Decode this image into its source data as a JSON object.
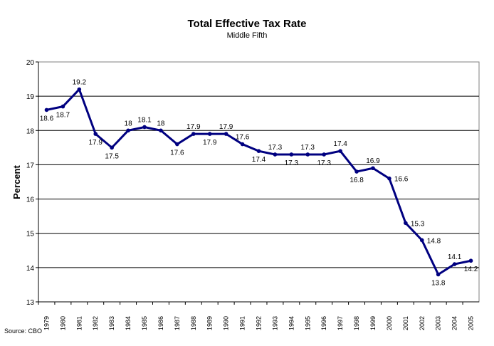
{
  "chart_data": {
    "type": "line",
    "title": "Total Effective Tax Rate",
    "subtitle": "Middle Fifth",
    "ylabel": "Percent",
    "xlabel": "",
    "source": "Source: CBO",
    "ylim": [
      13,
      20
    ],
    "yticks": [
      13,
      14,
      15,
      16,
      17,
      18,
      19,
      20
    ],
    "grid": true,
    "line_color": "#000080",
    "categories": [
      "1979",
      "1980",
      "1981",
      "1982",
      "1983",
      "1984",
      "1985",
      "1986",
      "1987",
      "1988",
      "1989",
      "1990",
      "1991",
      "1992",
      "1993",
      "1994",
      "1995",
      "1996",
      "1997",
      "1998",
      "1999",
      "2000",
      "2001",
      "2002",
      "2003",
      "2004",
      "2005"
    ],
    "values": [
      18.6,
      18.7,
      19.2,
      17.9,
      17.5,
      18,
      18.1,
      18,
      17.6,
      17.9,
      17.9,
      17.9,
      17.6,
      17.4,
      17.3,
      17.3,
      17.3,
      17.3,
      17.4,
      16.8,
      16.9,
      16.6,
      15.3,
      14.8,
      13.8,
      14.1,
      14.2
    ]
  }
}
